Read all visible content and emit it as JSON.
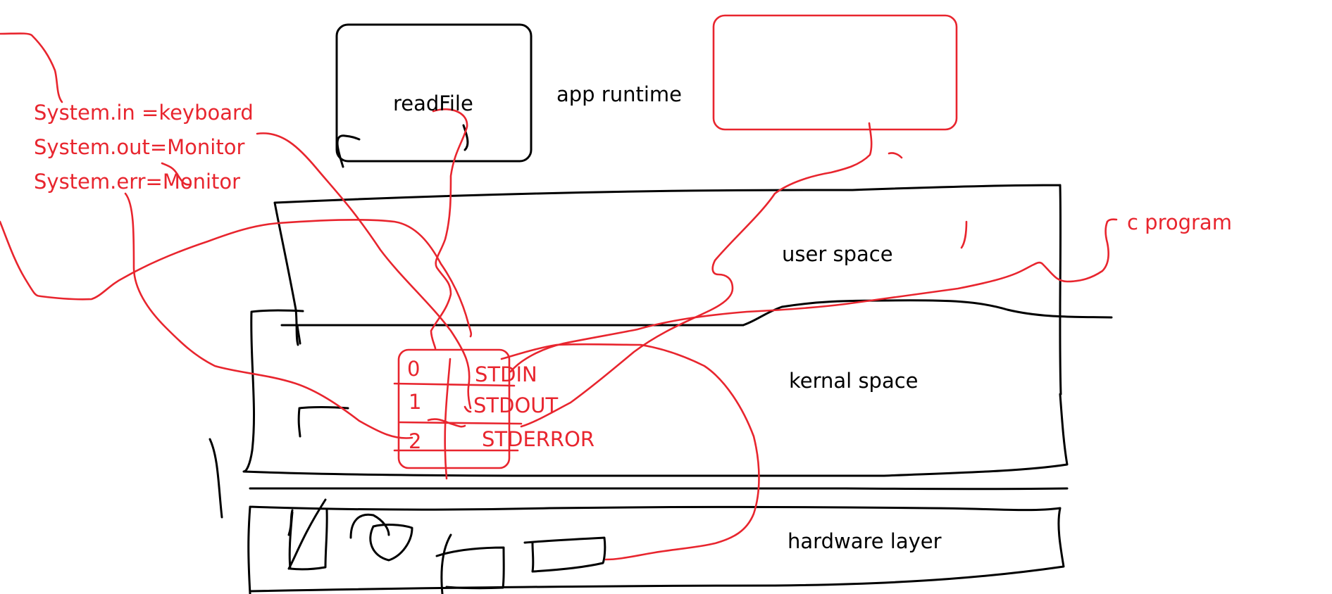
{
  "labels": {
    "read_file": "readFile",
    "app_runtime": "app runtime",
    "user_space": "user space",
    "kernal_space": "kernal space",
    "hardware_layer": "hardware layer",
    "c_program": "c program",
    "system_in": "System.in =keyboard",
    "system_out": "System.out=Monitor",
    "system_err": "System.err=Monitor",
    "fd_0": "0",
    "fd_1": "1",
    "fd_2": "2",
    "stdin": "STDIN",
    "stdout": "STDOUT",
    "stderror": "STDERROR"
  },
  "colors": {
    "ink": "#000000",
    "red_ink": "#e8252e",
    "background": "#ffffff"
  }
}
